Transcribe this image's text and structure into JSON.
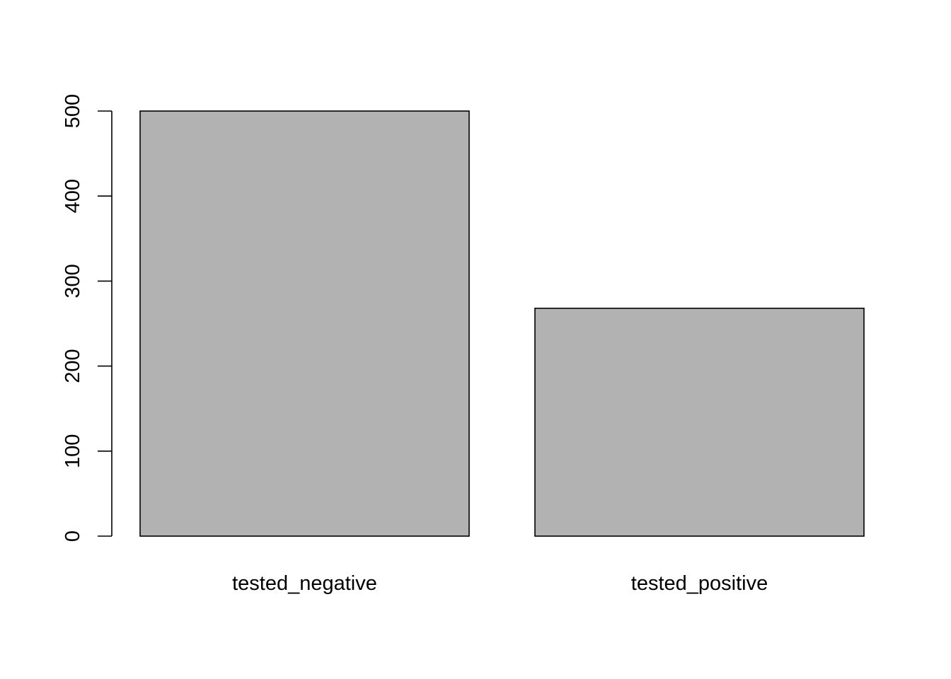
{
  "chart_data": {
    "type": "bar",
    "categories": [
      "tested_negative",
      "tested_positive"
    ],
    "values": [
      500,
      268
    ],
    "title": "",
    "xlabel": "",
    "ylabel": "",
    "ylim": [
      0,
      500
    ],
    "yticks": [
      0,
      100,
      200,
      300,
      400,
      500
    ],
    "ytick_labels": [
      "0",
      "100",
      "200",
      "300",
      "400",
      "500"
    ],
    "grid": false,
    "legend": "none",
    "colors": {
      "bar_fill": "#b2b2b2",
      "bar_stroke": "#000000",
      "axis": "#000000",
      "background": "#ffffff"
    }
  }
}
